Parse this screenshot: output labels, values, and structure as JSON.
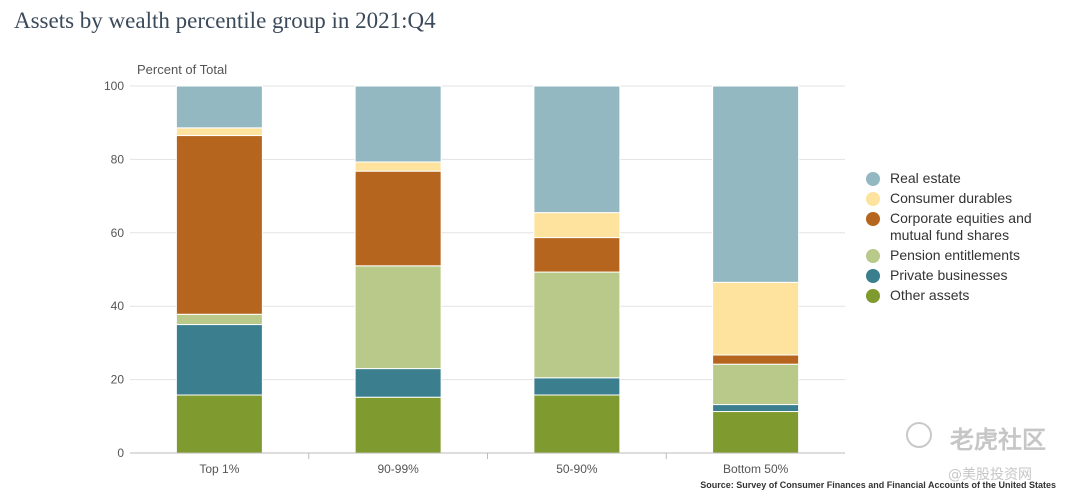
{
  "chart_data": {
    "type": "bar",
    "stacked": true,
    "title": "Assets by wealth percentile group in 2021:Q4",
    "ylabel": "Percent of Total",
    "xlabel": "",
    "ylim": [
      0,
      100
    ],
    "yticks": [
      0,
      20,
      40,
      60,
      80,
      100
    ],
    "categories": [
      "Top 1%",
      "90-99%",
      "50-90%",
      "Bottom 50%"
    ],
    "series": [
      {
        "name": "Other assets",
        "color": "#7f9a2e",
        "values": [
          15.8,
          15.2,
          15.8,
          11.3
        ]
      },
      {
        "name": "Private businesses",
        "color": "#3b7f8f",
        "values": [
          19.2,
          7.8,
          4.7,
          1.9
        ]
      },
      {
        "name": "Pension entitlements",
        "color": "#b8c98a",
        "values": [
          2.8,
          28.0,
          28.8,
          11.0
        ]
      },
      {
        "name": "Corporate equities and mutual fund shares",
        "color": "#b5651d",
        "values": [
          48.7,
          25.8,
          9.4,
          2.5
        ]
      },
      {
        "name": "Consumer durables",
        "color": "#fde39d",
        "values": [
          2.1,
          2.5,
          6.8,
          19.8
        ]
      },
      {
        "name": "Real estate",
        "color": "#94b8c1",
        "values": [
          11.4,
          20.7,
          34.5,
          53.5
        ]
      }
    ],
    "legend": {
      "position": "right",
      "order": [
        "Real estate",
        "Consumer durables",
        "Corporate equities and mutual fund shares",
        "Pension entitlements",
        "Private businesses",
        "Other assets"
      ],
      "items": [
        {
          "label_lines": [
            "Real estate"
          ],
          "color": "#94b8c1"
        },
        {
          "label_lines": [
            "Consumer durables"
          ],
          "color": "#fde39d"
        },
        {
          "label_lines": [
            "Corporate equities and",
            "mutual fund shares"
          ],
          "color": "#b5651d"
        },
        {
          "label_lines": [
            "Pension entitlements"
          ],
          "color": "#b8c98a"
        },
        {
          "label_lines": [
            "Private businesses"
          ],
          "color": "#3b7f8f"
        },
        {
          "label_lines": [
            "Other assets"
          ],
          "color": "#7f9a2e"
        }
      ]
    },
    "grid": true,
    "source": "Source: Survey of Consumer Finances and Financial Accounts of the United States"
  },
  "watermark": {
    "main": "老虎社区",
    "sub": "@美股投资网"
  }
}
